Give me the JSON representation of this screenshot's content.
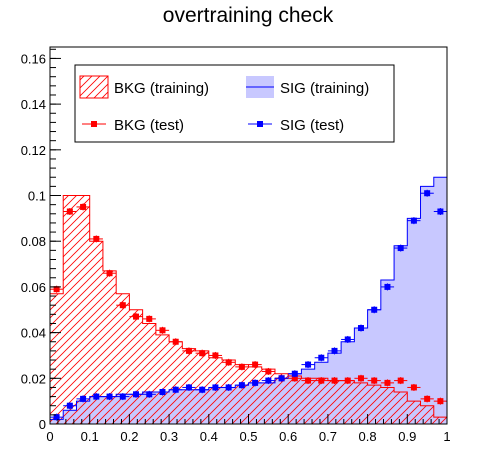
{
  "chart_data": {
    "type": "histogram",
    "title": "overtraining check",
    "xlabel": "",
    "ylabel": "",
    "xlim": [
      0,
      1
    ],
    "ylim": [
      0,
      0.165
    ],
    "x_ticks": [
      "0",
      "0.1",
      "0.2",
      "0.3",
      "0.4",
      "0.5",
      "0.6",
      "0.7",
      "0.8",
      "0.9",
      "1"
    ],
    "y_ticks": [
      "0",
      "0.02",
      "0.04",
      "0.06",
      "0.08",
      "0.1",
      "0.12",
      "0.14",
      "0.16"
    ],
    "bin_edges": [
      0,
      0.0333,
      0.0667,
      0.1,
      0.1333,
      0.1667,
      0.2,
      0.2333,
      0.2667,
      0.3,
      0.3333,
      0.3667,
      0.4,
      0.4333,
      0.4667,
      0.5,
      0.5333,
      0.5667,
      0.6,
      0.6333,
      0.6667,
      0.7,
      0.7333,
      0.7667,
      0.8,
      0.8333,
      0.8667,
      0.9,
      0.9333,
      0.9667,
      1
    ],
    "series": [
      {
        "name": "BKG (training)",
        "style": "hatched histogram",
        "color": "#ff0000",
        "values": [
          0.057,
          0.1,
          0.1,
          0.08,
          0.067,
          0.057,
          0.05,
          0.044,
          0.039,
          0.036,
          0.033,
          0.032,
          0.029,
          0.028,
          0.026,
          0.025,
          0.024,
          0.022,
          0.021,
          0.02,
          0.02,
          0.019,
          0.019,
          0.018,
          0.017,
          0.016,
          0.014,
          0.01,
          0.008,
          0.003
        ]
      },
      {
        "name": "SIG (training)",
        "style": "filled histogram",
        "color": "#0000ff",
        "fill": "#c8c8ff",
        "values": [
          0.002,
          0.006,
          0.01,
          0.012,
          0.012,
          0.013,
          0.013,
          0.014,
          0.014,
          0.015,
          0.015,
          0.015,
          0.016,
          0.016,
          0.017,
          0.018,
          0.018,
          0.02,
          0.022,
          0.024,
          0.027,
          0.031,
          0.036,
          0.042,
          0.05,
          0.063,
          0.078,
          0.09,
          0.104,
          0.108
        ]
      },
      {
        "name": "BKG (test)",
        "style": "markers",
        "color": "#ff0000",
        "values": [
          0.059,
          0.093,
          0.095,
          0.081,
          0.066,
          0.052,
          0.047,
          0.046,
          0.041,
          0.036,
          0.032,
          0.031,
          0.03,
          0.027,
          0.025,
          0.026,
          0.023,
          0.02,
          0.02,
          0.019,
          0.019,
          0.019,
          0.019,
          0.02,
          0.019,
          0.018,
          0.019,
          0.016,
          0.011,
          0.01
        ]
      },
      {
        "name": "SIG (test)",
        "style": "markers",
        "color": "#0000ff",
        "values": [
          0.003,
          0.008,
          0.011,
          0.012,
          0.012,
          0.012,
          0.013,
          0.013,
          0.014,
          0.015,
          0.016,
          0.015,
          0.016,
          0.016,
          0.017,
          0.018,
          0.019,
          0.02,
          0.022,
          0.026,
          0.029,
          0.032,
          0.037,
          0.042,
          0.05,
          0.06,
          0.077,
          0.089,
          0.101,
          0.093
        ]
      }
    ],
    "legend": {
      "placement": "top-left"
    }
  }
}
